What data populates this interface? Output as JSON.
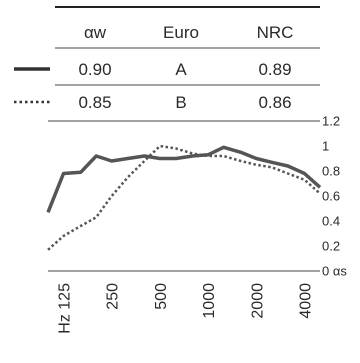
{
  "table": {
    "headers": [
      "αw",
      "Euro",
      "NRC"
    ],
    "rows": [
      {
        "style": "solid",
        "values": [
          "0.90",
          "A",
          "0.89"
        ]
      },
      {
        "style": "dotted",
        "values": [
          "0.85",
          "B",
          "0.86"
        ]
      }
    ]
  },
  "chart_data": {
    "type": "line",
    "x": [
      100,
      125,
      160,
      200,
      250,
      315,
      400,
      500,
      630,
      800,
      1000,
      1250,
      1600,
      2000,
      2500,
      3150,
      4000,
      5000
    ],
    "tick_labels": [
      "Hz 125",
      "250",
      "500",
      "1000",
      "2000",
      "4000"
    ],
    "tick_freqs": [
      125,
      250,
      500,
      1000,
      2000,
      4000
    ],
    "yticks": [
      "1.2",
      "1",
      "0.8",
      "0.6",
      "0.4",
      "0.2",
      "0 αs"
    ],
    "ylim": [
      0,
      1.2
    ],
    "series": [
      {
        "style": "solid",
        "values": [
          0.47,
          0.78,
          0.79,
          0.92,
          0.88,
          0.9,
          0.92,
          0.9,
          0.9,
          0.92,
          0.93,
          0.99,
          0.95,
          0.9,
          0.87,
          0.84,
          0.78,
          0.67
        ]
      },
      {
        "style": "dotted",
        "values": [
          0.17,
          0.28,
          0.36,
          0.43,
          0.6,
          0.75,
          0.88,
          1.0,
          0.98,
          0.94,
          0.92,
          0.92,
          0.88,
          0.85,
          0.83,
          0.78,
          0.73,
          0.62
        ]
      }
    ]
  }
}
